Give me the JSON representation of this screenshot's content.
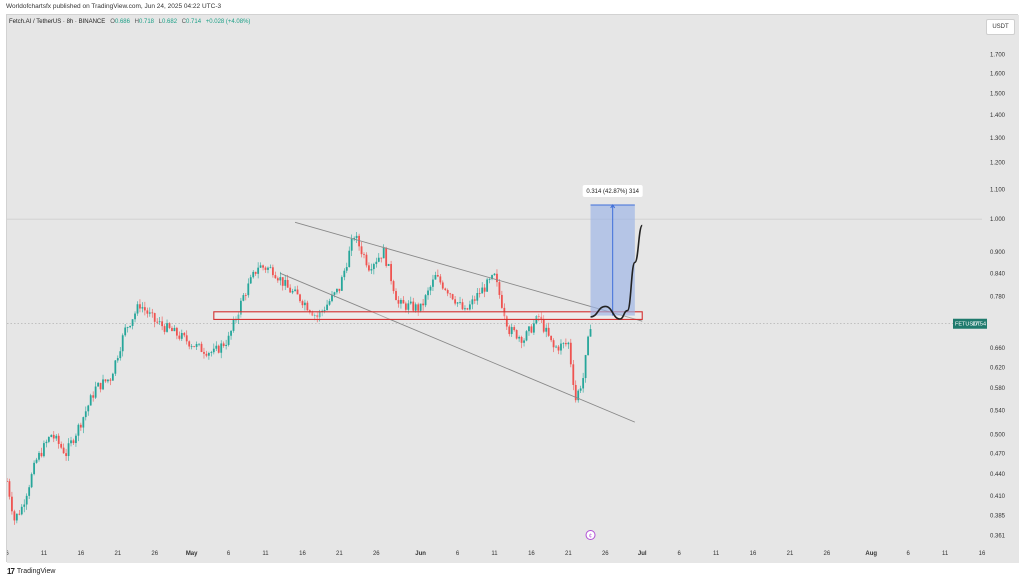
{
  "header": {
    "published_line": "Worldofchartsfx published on TradingView.com, Jun 24, 2025 04:22 UTC-3"
  },
  "legend": {
    "symbol": "Fetch.AI / TetherUS · 8h · BINANCE",
    "o_label": "O",
    "o_value": "0.686",
    "h_label": "H",
    "h_value": "0.718",
    "l_label": "L",
    "l_value": "0.682",
    "c_label": "C",
    "c_value": "0.714",
    "change": "+0.028 (+4.08%)"
  },
  "currency_badge": "USDT",
  "price_tag": {
    "label": "FETUSDT",
    "countdown": "37:54",
    "price": 0.714
  },
  "measure_label": "0.314 (42.87%) 314",
  "event_marker": "¢",
  "footer": {
    "logo": "17",
    "brand": "TradingView"
  },
  "colors": {
    "up": "#26a69a",
    "down": "#ef5350",
    "background": "#e6e6e6",
    "channel": "#888888",
    "zone": "#d32f2f",
    "projection": "#222222",
    "measure_fill": "#9bb4e6",
    "measure_line": "#3f6fd9",
    "price_tag_bg": "#1f7a6d"
  },
  "chart_data": {
    "type": "candlestick",
    "y_scale": "log",
    "ylim": [
      0.35,
      1.9
    ],
    "y_ticks": [
      1.7,
      1.6,
      1.5,
      1.4,
      1.3,
      1.2,
      1.1,
      1.0,
      0.9,
      0.84,
      0.78,
      0.66,
      0.62,
      0.58,
      0.54,
      0.5,
      0.47,
      0.44,
      0.41,
      0.385,
      0.361
    ],
    "y_tick_labels": [
      "1.700",
      "1.600",
      "1.500",
      "1.400",
      "1.300",
      "1.200",
      "1.100",
      "1.000",
      "0.900",
      "0.840",
      "0.780",
      "0.660",
      "0.620",
      "0.580",
      "0.540",
      "0.500",
      "0.470",
      "0.440",
      "0.410",
      "0.385",
      "0.361"
    ],
    "x_start": "2025-04-06",
    "x_end": "2025-08-16",
    "x_ticks": [
      "6",
      "11",
      "16",
      "21",
      "26",
      "May",
      "6",
      "11",
      "16",
      "21",
      "26",
      "Jun",
      "6",
      "11",
      "16",
      "21",
      "26",
      "Jul",
      "6",
      "11",
      "16",
      "21",
      "26",
      "Aug",
      "6",
      "11",
      "16"
    ],
    "price_path": [
      [
        "2025-04-06",
        0.43
      ],
      [
        "2025-04-07",
        0.38
      ],
      [
        "2025-04-08",
        0.395
      ],
      [
        "2025-04-10",
        0.46
      ],
      [
        "2025-04-12",
        0.5
      ],
      [
        "2025-04-14",
        0.47
      ],
      [
        "2025-04-16",
        0.52
      ],
      [
        "2025-04-18",
        0.58
      ],
      [
        "2025-04-20",
        0.6
      ],
      [
        "2025-04-22",
        0.7
      ],
      [
        "2025-04-24",
        0.76
      ],
      [
        "2025-04-26",
        0.72
      ],
      [
        "2025-04-28",
        0.7
      ],
      [
        "2025-04-30",
        0.68
      ],
      [
        "2025-05-02",
        0.66
      ],
      [
        "2025-05-04",
        0.65
      ],
      [
        "2025-05-06",
        0.68
      ],
      [
        "2025-05-08",
        0.78
      ],
      [
        "2025-05-10",
        0.86
      ],
      [
        "2025-05-12",
        0.85
      ],
      [
        "2025-05-14",
        0.8
      ],
      [
        "2025-05-16",
        0.77
      ],
      [
        "2025-05-18",
        0.73
      ],
      [
        "2025-05-21",
        0.8
      ],
      [
        "2025-05-23",
        0.95
      ],
      [
        "2025-05-25",
        0.86
      ],
      [
        "2025-05-27",
        0.9
      ],
      [
        "2025-05-29",
        0.76
      ],
      [
        "2025-06-01",
        0.75
      ],
      [
        "2025-06-03",
        0.83
      ],
      [
        "2025-06-05",
        0.79
      ],
      [
        "2025-06-07",
        0.74
      ],
      [
        "2025-06-09",
        0.79
      ],
      [
        "2025-06-11",
        0.83
      ],
      [
        "2025-06-13",
        0.7
      ],
      [
        "2025-06-15",
        0.68
      ],
      [
        "2025-06-17",
        0.73
      ],
      [
        "2025-06-19",
        0.66
      ],
      [
        "2025-06-21",
        0.67
      ],
      [
        "2025-06-22",
        0.56
      ],
      [
        "2025-06-23",
        0.6
      ],
      [
        "2025-06-24",
        0.714
      ]
    ],
    "descending_channel": {
      "upper": [
        [
          "2025-05-15",
          0.99
        ],
        [
          "2025-07-01",
          0.72
        ]
      ],
      "lower": [
        [
          "2025-05-13",
          0.84
        ],
        [
          "2025-06-30",
          0.52
        ]
      ]
    },
    "horizontal_zone": {
      "x": [
        "2025-05-04",
        "2025-07-01"
      ],
      "y": [
        0.724,
        0.742
      ]
    },
    "measurement": {
      "x": [
        "2025-06-24",
        "2025-06-30"
      ],
      "y": [
        0.733,
        1.047
      ],
      "change": 0.314,
      "percent": 42.87,
      "bars": 314
    },
    "projection_path": [
      [
        "2025-06-24",
        0.73
      ],
      [
        "2025-06-26",
        0.755
      ],
      [
        "2025-06-28",
        0.725
      ],
      [
        "2025-06-29",
        0.745
      ],
      [
        "2025-06-30",
        0.87
      ],
      [
        "2025-07-01",
        0.98
      ]
    ]
  }
}
